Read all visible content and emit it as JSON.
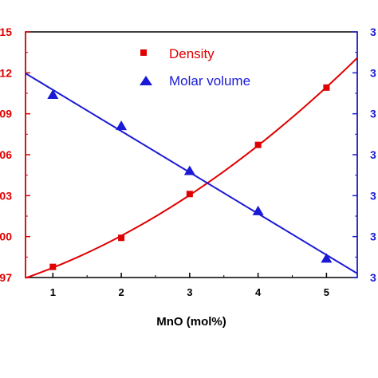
{
  "chart_data": {
    "type": "scatter",
    "xlabel": "MnO (mol%)",
    "x_ticks": [
      "1",
      "2",
      "3",
      "4",
      "5"
    ],
    "x_range": [
      0.6,
      5.45
    ],
    "left_axis": {
      "color": "#e00000",
      "ticks": [
        "15",
        "12",
        "09",
        "06",
        "03",
        "00",
        "97"
      ],
      "range": [
        0,
        6
      ]
    },
    "right_axis": {
      "color": "#1a1ad6",
      "ticks": [
        "3",
        "3",
        "3",
        "3",
        "3",
        "3",
        "3"
      ],
      "range": [
        0,
        6
      ]
    },
    "series": [
      {
        "name": "Density",
        "axis": "left",
        "marker": "square",
        "color": "#e00000",
        "x": [
          1,
          2,
          3,
          4,
          5
        ],
        "y": [
          0.26,
          0.97,
          2.04,
          3.24,
          4.64
        ],
        "fit": {
          "kind": "quadratic",
          "x": [
            0.6,
            5.45
          ]
        }
      },
      {
        "name": "Molar volume",
        "axis": "right",
        "marker": "triangle",
        "color": "#1a1ad6",
        "x": [
          1,
          2,
          3,
          4,
          5
        ],
        "y": [
          4.46,
          3.7,
          2.6,
          1.62,
          0.46
        ],
        "fit": {
          "kind": "linear",
          "x": [
            0.6,
            5.45
          ]
        }
      }
    ]
  }
}
